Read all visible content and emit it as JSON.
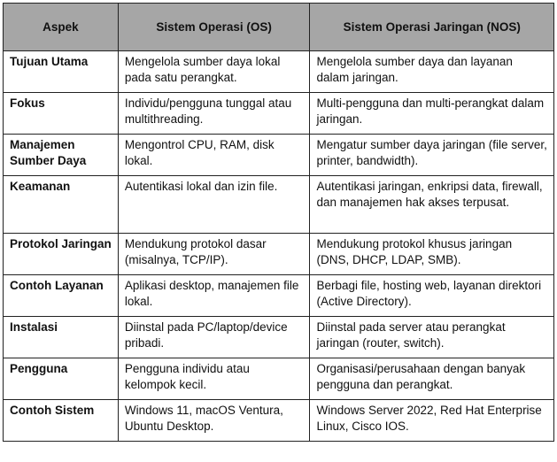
{
  "headers": [
    "Aspek",
    "Sistem Operasi (OS)",
    "Sistem Operasi Jaringan (NOS)"
  ],
  "rows": [
    {
      "aspek": "Tujuan Utama",
      "os": "Mengelola sumber daya lokal pada satu perangkat.",
      "nos": "Mengelola sumber daya dan layanan dalam jaringan."
    },
    {
      "aspek": "Fokus",
      "os": "Individu/pengguna tunggal atau multithreading.",
      "nos": "Multi-pengguna dan multi-perangkat dalam jaringan."
    },
    {
      "aspek": "Manajemen Sumber Daya",
      "os": "Mengontrol CPU, RAM, disk lokal.",
      "nos": "Mengatur sumber daya jaringan (file server, printer, bandwidth)."
    },
    {
      "aspek": "Keamanan",
      "os": "Autentikasi lokal dan izin file.",
      "nos": "Autentikasi jaringan, enkripsi data, firewall, dan manajemen hak akses terpusat."
    },
    {
      "aspek": "Protokol Jaringan",
      "os": "Mendukung protokol dasar (misalnya, TCP/IP).",
      "nos": "Mendukung protokol khusus jaringan (DNS, DHCP, LDAP, SMB)."
    },
    {
      "aspek": "Contoh Layanan",
      "os": "Aplikasi desktop, manajemen file lokal.",
      "nos": "Berbagi file, hosting web, layanan direktori (Active Directory)."
    },
    {
      "aspek": "Instalasi",
      "os": "Diinstal pada PC/laptop/device pribadi.",
      "nos": "Diinstal pada server atau perangkat jaringan (router, switch)."
    },
    {
      "aspek": "Pengguna",
      "os": "Pengguna individu atau kelompok kecil.",
      "nos": "Organisasi/perusahaan dengan banyak pengguna dan perangkat."
    },
    {
      "aspek": "Contoh Sistem",
      "os": "Windows 11, macOS Ventura, Ubuntu Desktop.",
      "nos": "Windows Server 2022, Red Hat Enterprise Linux, Cisco IOS."
    }
  ]
}
